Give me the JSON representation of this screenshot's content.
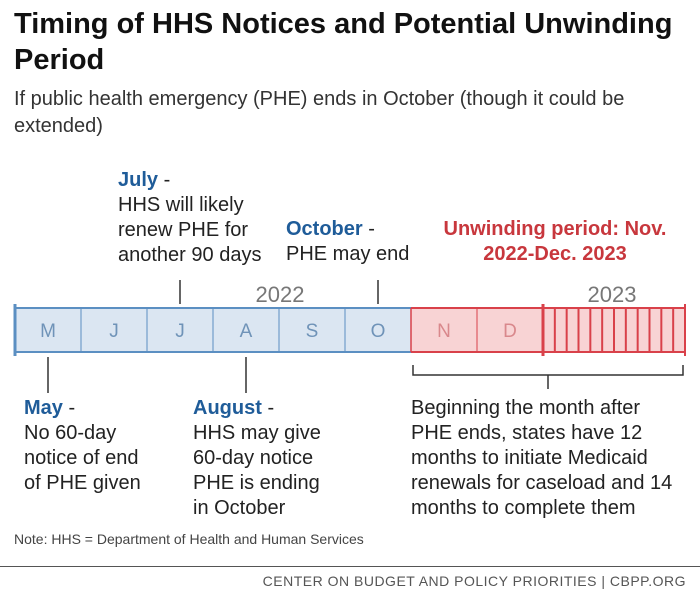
{
  "title": "Timing of HHS Notices and Potential Unwinding Period",
  "subtitle": "If public health emergency (PHE) ends in October (though it could be extended)",
  "chart_data": {
    "type": "timeline",
    "months_2022": [
      "M",
      "J",
      "J",
      "A",
      "S",
      "O"
    ],
    "unwinding_months": [
      "N",
      "D"
    ],
    "year_2022": "2022",
    "year_2023": "2023",
    "colors": {
      "blue_fill": "#dbe6f2",
      "blue_line": "#5b8fc2",
      "red_fill": "#f8d3d4",
      "red_line": "#d9414a",
      "month_label": "#6f93b8",
      "red_label": "#d9888c"
    }
  },
  "annotations": {
    "july": {
      "head": "July",
      "dash": " -",
      "text": "HHS will likely renew PHE for another 90 days"
    },
    "october": {
      "head": "October",
      "dash": " -",
      "text": "PHE may end"
    },
    "unwinding": {
      "text": "Unwinding period: Nov. 2022-Dec. 2023"
    },
    "may": {
      "head": "May",
      "dash": " -",
      "text": "No 60-day notice of end of PHE given"
    },
    "august": {
      "head": "August",
      "dash": " -",
      "text": "HHS may give 60-day notice PHE is ending in October"
    },
    "bracket": {
      "text": "Beginning the month after PHE ends, states have 12 months to initiate Medicaid renewals for caseload and 14 months to complete them"
    }
  },
  "note": "Note: HHS = Department of Health and Human Services",
  "footer": "CENTER ON BUDGET AND POLICY PRIORITIES | CBPP.ORG"
}
